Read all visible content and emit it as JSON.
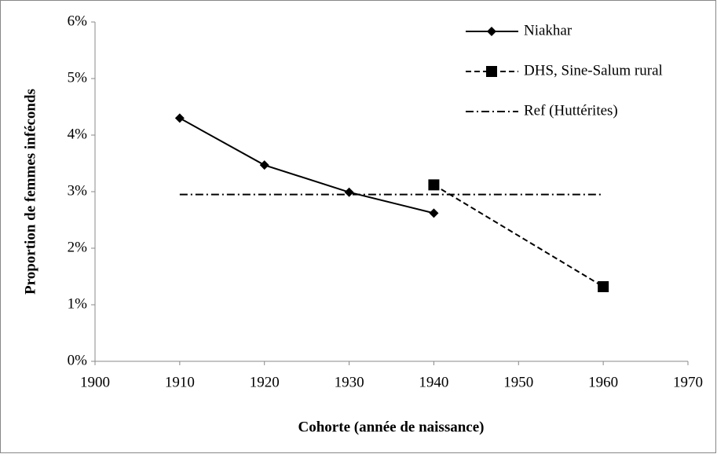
{
  "chart_data": {
    "type": "line",
    "x_label": "Cohorte (année de naissance)",
    "y_label": "Proportion de femmes inféconds",
    "xlim": [
      1900,
      1970
    ],
    "xticks": [
      1900,
      1910,
      1920,
      1930,
      1940,
      1950,
      1960,
      1970
    ],
    "ylim": [
      0,
      6
    ],
    "yticks": [
      {
        "value": 0,
        "label": "0%"
      },
      {
        "value": 1,
        "label": "1%"
      },
      {
        "value": 2,
        "label": "2%"
      },
      {
        "value": 3,
        "label": "3%"
      },
      {
        "value": 4,
        "label": "4%"
      },
      {
        "value": 5,
        "label": "5%"
      },
      {
        "value": 6,
        "label": "6%"
      }
    ],
    "grid": false,
    "legend": "top-right",
    "series": [
      {
        "name": "Niakhar",
        "color": "#000000",
        "dash": "solid",
        "marker": "diamond",
        "x": [
          1910,
          1920,
          1930,
          1940
        ],
        "values": [
          4.3,
          3.47,
          2.99,
          2.62
        ]
      },
      {
        "name": "DHS, Sine-Salum rural",
        "color": "#000000",
        "dash": "dashed",
        "marker": "square",
        "x": [
          1940,
          1960
        ],
        "values": [
          3.12,
          1.32
        ]
      },
      {
        "name": "Ref (Huttérites)",
        "color": "#000000",
        "dash": "dashdot",
        "marker": "none",
        "x": [
          1910,
          1960
        ],
        "values": [
          2.95,
          2.95
        ]
      }
    ]
  }
}
